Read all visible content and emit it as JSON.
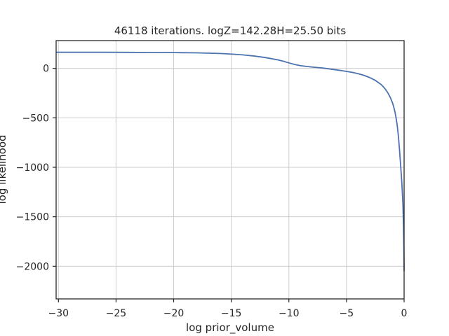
{
  "chart_data": {
    "type": "line",
    "title": "46118 iterations. logZ=142.28H=25.50 bits",
    "xlabel": "log prior_volume",
    "ylabel": "log likelihood",
    "xlim": [
      -30.2,
      0
    ],
    "ylim": [
      -2330,
      280
    ],
    "xticks": [
      -30,
      -25,
      -20,
      -15,
      -10,
      -5,
      0
    ],
    "xtick_labels": [
      "−30",
      "−25",
      "−20",
      "−15",
      "−10",
      "−5",
      "0"
    ],
    "yticks": [
      0,
      -500,
      -1000,
      -1500,
      -2000
    ],
    "ytick_labels": [
      "0",
      "−500",
      "−1000",
      "−1500",
      "−2000"
    ],
    "grid": true,
    "color": "#4c72b0",
    "series": [
      {
        "x": [
          -30.2,
          -28,
          -26,
          -24,
          -22,
          -20,
          -18,
          -16,
          -15,
          -14,
          -13,
          -12,
          -11,
          -10.5,
          -10,
          -9.5,
          -9,
          -8.5,
          -8,
          -7.5,
          -7,
          -6.5,
          -6,
          -5.5,
          -5,
          -4.5,
          -4,
          -3.5,
          -3,
          -2.5,
          -2,
          -1.8,
          -1.6,
          -1.4,
          -1.2,
          -1.0,
          -0.9,
          -0.8,
          -0.7,
          -0.6,
          -0.5,
          -0.4,
          -0.3,
          -0.2,
          -0.1,
          -0.05,
          -0.02,
          0
        ],
        "y": [
          162,
          162,
          162,
          161,
          160,
          159,
          156,
          150,
          144,
          136,
          124,
          108,
          86,
          72,
          55,
          39,
          27,
          19,
          13,
          8,
          2,
          -6,
          -14,
          -22,
          -31,
          -41,
          -54,
          -70,
          -93,
          -122,
          -163,
          -187,
          -215,
          -250,
          -294,
          -351,
          -390,
          -437,
          -498,
          -575,
          -680,
          -820,
          -980,
          -1150,
          -1380,
          -1600,
          -1800,
          -2050
        ]
      }
    ]
  }
}
